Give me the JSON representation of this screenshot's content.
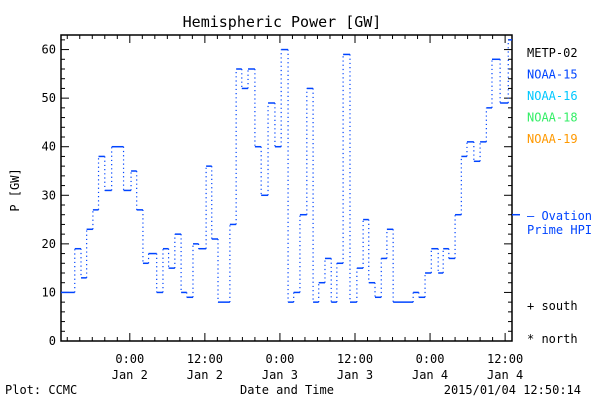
{
  "chart_data": {
    "type": "line",
    "title": "Hemispheric Power [GW]",
    "xlabel": "Date and Time",
    "ylabel": "P [GW]",
    "x_units": "hours relative to 2015-01-02 00:00",
    "xlim": [
      -11.0,
      61.1
    ],
    "ylim": [
      0,
      63
    ],
    "yticks": [
      0,
      10,
      20,
      30,
      40,
      50,
      60
    ],
    "xticks": [
      {
        "x": 0,
        "time": "0:00",
        "date": "Jan 2"
      },
      {
        "x": 12,
        "time": "12:00",
        "date": "Jan 2"
      },
      {
        "x": 24,
        "time": "0:00",
        "date": "Jan 3"
      },
      {
        "x": 36,
        "time": "12:00",
        "date": "Jan 3"
      },
      {
        "x": 48,
        "time": "0:00",
        "date": "Jan 4"
      },
      {
        "x": 60,
        "time": "12:00",
        "date": "Jan 4"
      }
    ],
    "series": [
      {
        "name": "NOAA-15",
        "color": "#0044ff",
        "step_starts": [
          -11.0,
          -8.8,
          -7.8,
          -6.9,
          -5.9,
          -5.0,
          -4.0,
          -2.9,
          -1.0,
          0.2,
          1.1,
          2.1,
          3.0,
          4.3,
          5.3,
          6.2,
          7.2,
          8.2,
          9.1,
          10.1,
          11.0,
          12.2,
          13.1,
          14.1,
          16.0,
          17.0,
          17.9,
          18.9,
          20.0,
          21.0,
          22.1,
          23.2,
          24.2,
          25.3,
          26.2,
          27.2,
          28.3,
          29.3,
          30.2,
          31.2,
          32.2,
          33.1,
          34.1,
          35.2,
          36.3,
          37.3,
          38.2,
          39.2,
          40.2,
          41.1,
          42.1,
          45.3,
          46.2,
          47.2,
          48.2,
          49.3,
          50.1,
          51.0,
          52.0,
          53.0,
          53.9,
          55.0,
          56.0,
          57.0,
          57.9,
          59.2,
          60.5
        ],
        "values": [
          10,
          19,
          13,
          23,
          27,
          38,
          31,
          40,
          31,
          35,
          27,
          16,
          18,
          10,
          19,
          15,
          22,
          10,
          9,
          20,
          19,
          36,
          21,
          8,
          24,
          56,
          52,
          56,
          40,
          30,
          49,
          40,
          60,
          8,
          10,
          26,
          52,
          8,
          12,
          17,
          8,
          16,
          59,
          8,
          15,
          25,
          12,
          9,
          17,
          23,
          8,
          10,
          9,
          14,
          19,
          14,
          19,
          17,
          26,
          38,
          41,
          37,
          41,
          48,
          58,
          49,
          62
        ],
        "end": 61.1
      }
    ],
    "ovation_prime_hpi": 26,
    "legend": [
      {
        "label": "METP-02",
        "color": "#000000"
      },
      {
        "label": "NOAA-15",
        "color": "#0044ff"
      },
      {
        "label": "NOAA-16",
        "color": "#00c8ff"
      },
      {
        "label": "NOAA-18",
        "color": "#33ee66"
      },
      {
        "label": "NOAA-19",
        "color": "#ff9900"
      }
    ],
    "legend_placement": "right",
    "ovation_label_1": "— Ovation",
    "ovation_label_2": "Prime HPI",
    "south_label": "+ south",
    "north_label": "* north"
  },
  "footer": {
    "plot_source": "Plot: CCMC",
    "timestamp": "2015/01/04 12:50:14"
  }
}
